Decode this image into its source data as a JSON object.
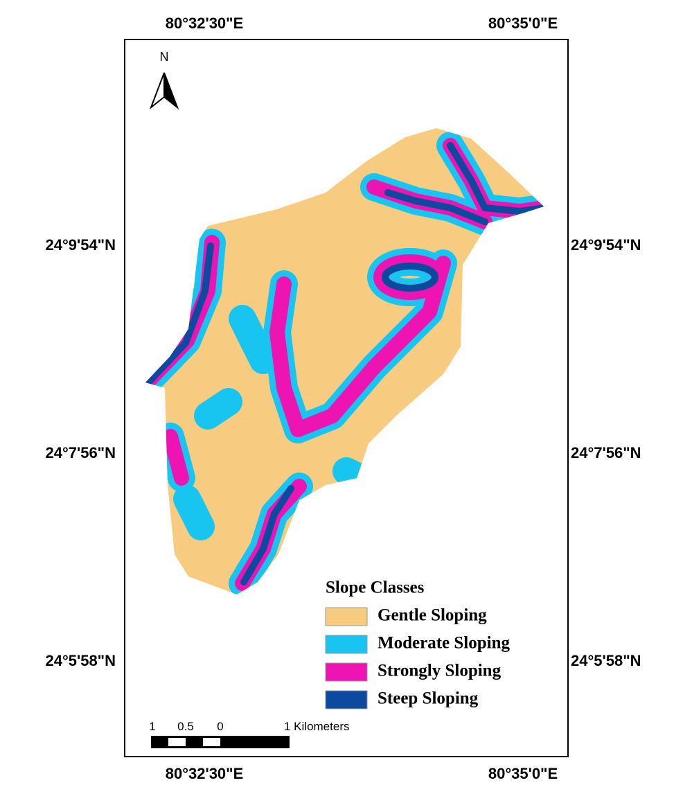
{
  "map": {
    "top_labels": [
      "80°32'30\"E",
      "80°35'0\"E"
    ],
    "bottom_labels": [
      "80°32'30\"E",
      "80°35'0\"E"
    ],
    "left_labels": [
      "24°9'54\"N",
      "24°7'56\"N",
      "24°5'58\"N"
    ],
    "right_labels": [
      "24°9'54\"N",
      "24°7'56\"N",
      "24°5'58\"N"
    ],
    "north": "N",
    "legend": {
      "title": "Slope Classes",
      "items": [
        {
          "label": "Gentle Sloping",
          "color": "#f8cc80"
        },
        {
          "label": "Moderate Sloping",
          "color": "#18c4f0"
        },
        {
          "label": "Strongly Sloping",
          "color": "#ee14b4"
        },
        {
          "label": "Steep Sloping",
          "color": "#0c4aa0"
        }
      ]
    },
    "scale_bar": {
      "labels": [
        "1",
        "0.5",
        "0",
        "1 Kilometers"
      ]
    }
  }
}
